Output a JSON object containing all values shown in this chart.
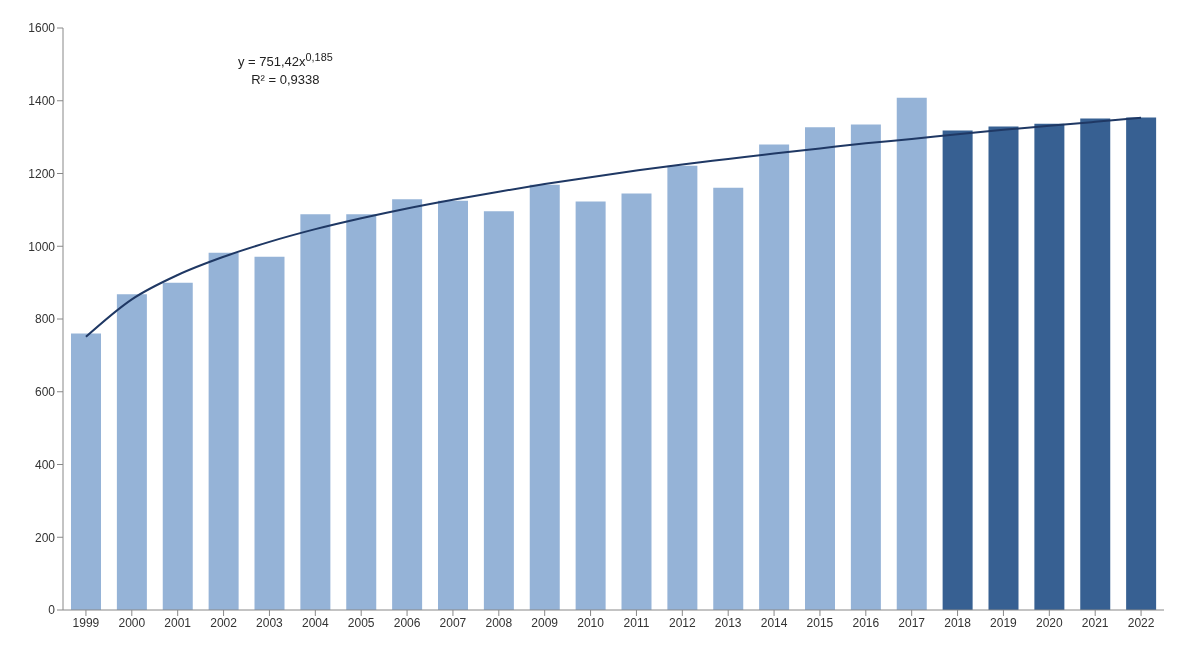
{
  "chart_data": {
    "type": "bar",
    "categories": [
      "1999",
      "2000",
      "2001",
      "2002",
      "2003",
      "2004",
      "2005",
      "2006",
      "2007",
      "2008",
      "2009",
      "2010",
      "2011",
      "2012",
      "2013",
      "2014",
      "2015",
      "2016",
      "2017",
      "2018",
      "2019",
      "2020",
      "2021",
      "2022"
    ],
    "series": [
      {
        "colors": [
          "#95b3d7",
          "#95b3d7",
          "#95b3d7",
          "#95b3d7",
          "#95b3d7",
          "#95b3d7",
          "#95b3d7",
          "#95b3d7",
          "#95b3d7",
          "#95b3d7",
          "#95b3d7",
          "#95b3d7",
          "#95b3d7",
          "#95b3d7",
          "#95b3d7",
          "#95b3d7",
          "#95b3d7",
          "#95b3d7",
          "#95b3d7",
          "#376092",
          "#376092",
          "#376092",
          "#376092",
          "#376092"
        ],
        "values": [
          760,
          868,
          900,
          982,
          971,
          1088,
          1088,
          1129,
          1125,
          1096,
          1169,
          1123,
          1145,
          1221,
          1161,
          1280,
          1327,
          1335,
          1408,
          1318,
          1329,
          1337,
          1351,
          1354
        ]
      },
      {
        "type": "line",
        "color": "#1f3864",
        "values": [
          751,
          854,
          921,
          971,
          1012,
          1047,
          1077,
          1104,
          1128,
          1150,
          1171,
          1190,
          1208,
          1225,
          1240,
          1255,
          1269,
          1283,
          1295,
          1308,
          1320,
          1331,
          1342,
          1353
        ]
      }
    ],
    "ylim": [
      0,
      1600
    ],
    "yticks": [
      0,
      200,
      400,
      600,
      800,
      1000,
      1200,
      1400,
      1600
    ],
    "grid": false,
    "legend": false,
    "marker": "none",
    "annotations": [
      "y = 751,42x$^{0,185}$",
      "R² = 0,9338"
    ]
  }
}
